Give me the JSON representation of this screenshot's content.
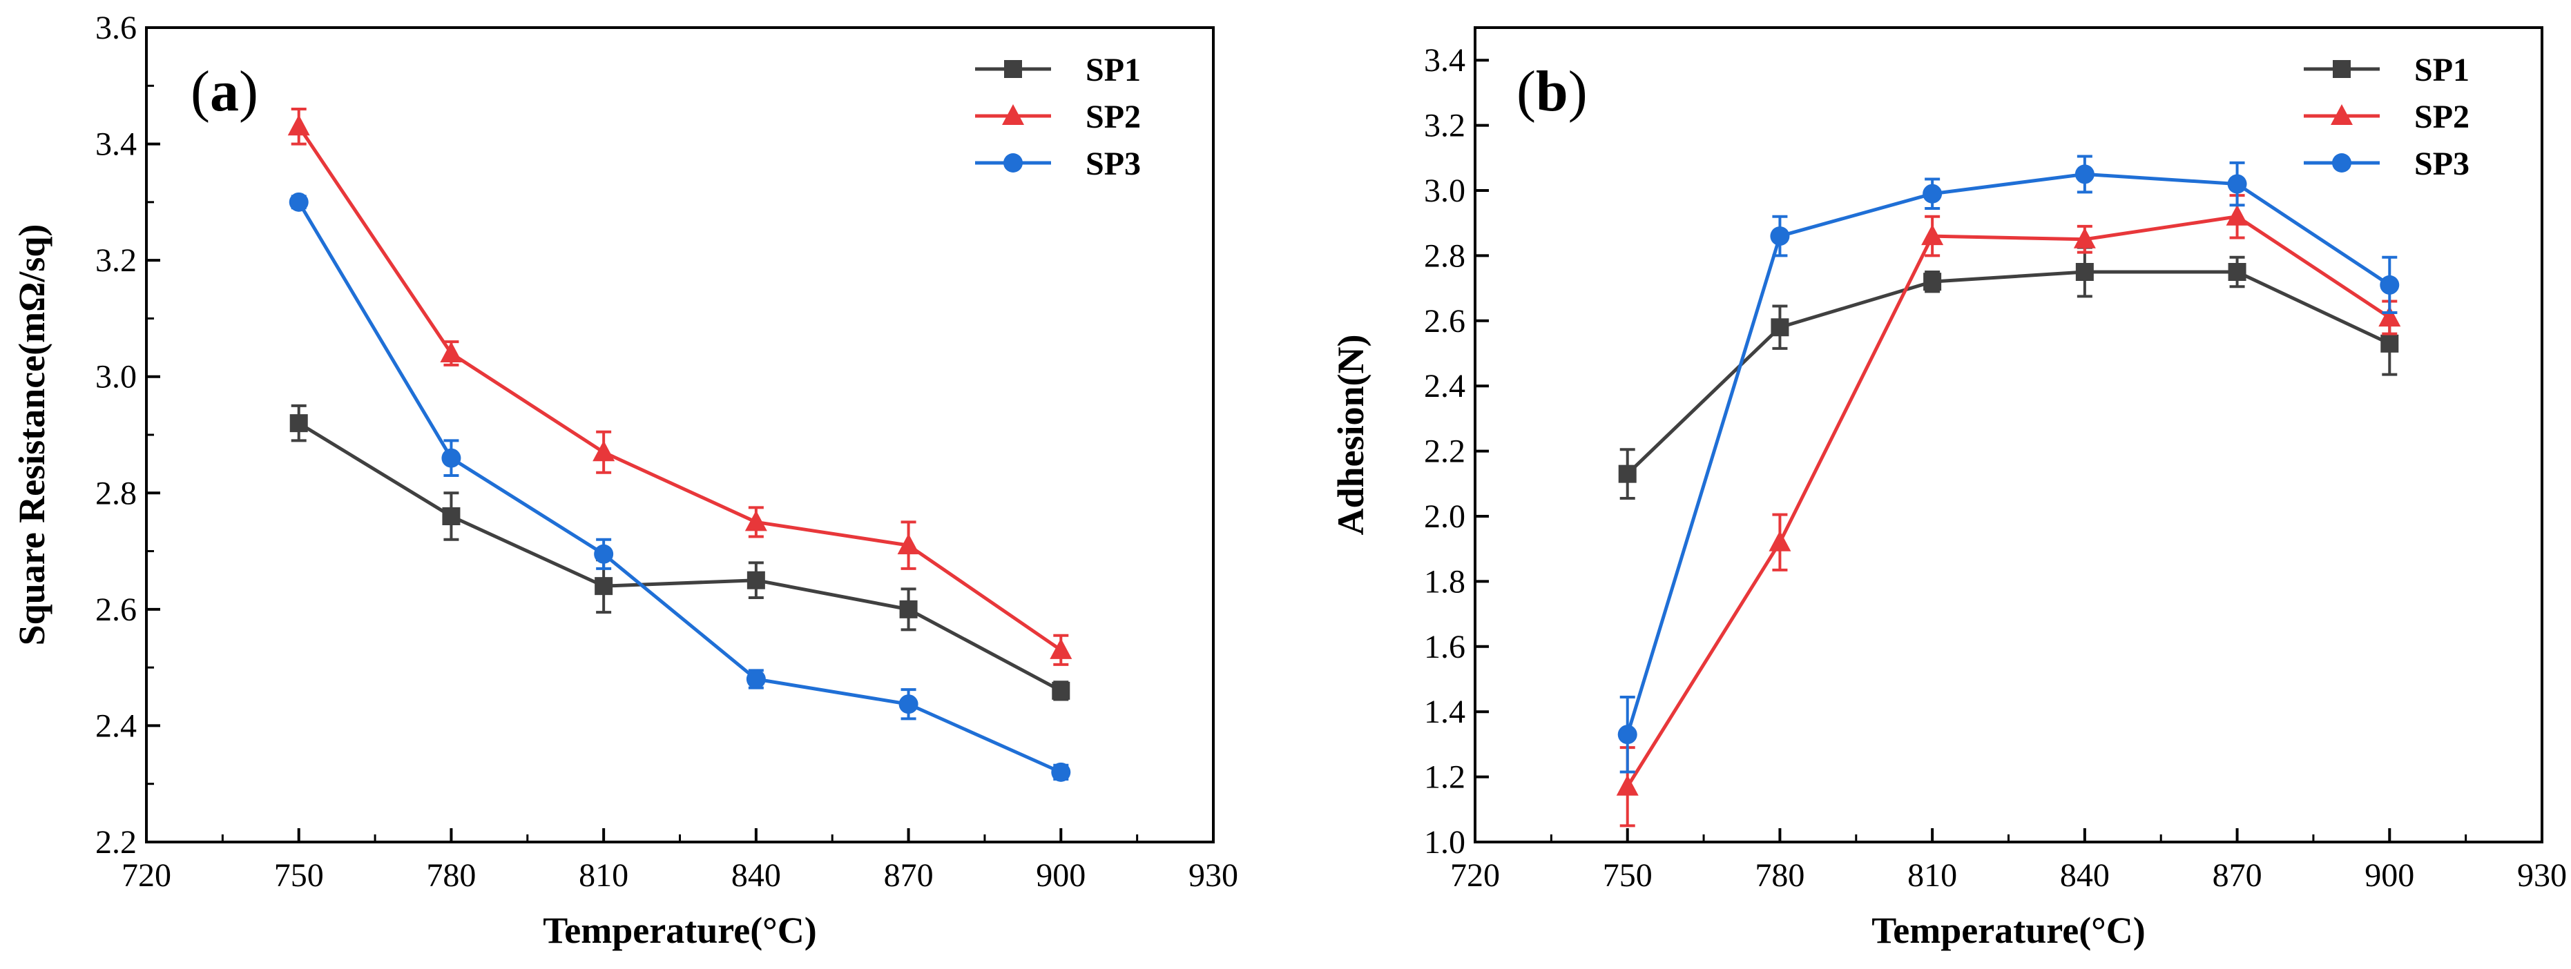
{
  "colors": {
    "SP1": "#404040",
    "SP2": "#e8373a",
    "SP3": "#1f6fd6",
    "axis": "#000000"
  },
  "chart_data": [
    {
      "id": "a",
      "type": "line",
      "panel_label": {
        "open": "(",
        "letter": "a",
        "close": ")"
      },
      "xlabel": "Temperature(°C)",
      "ylabel": "Square Resistance(mΩ/sq)",
      "xlim": [
        720,
        930
      ],
      "ylim": [
        2.2,
        3.6
      ],
      "xticks": [
        "720",
        "750",
        "780",
        "810",
        "840",
        "870",
        "900",
        "930"
      ],
      "yticks": [
        "2.2",
        "2.4",
        "2.6",
        "2.8",
        "3.0",
        "3.2",
        "3.4",
        "3.6"
      ],
      "legend_position": "top-right",
      "x": [
        750,
        780,
        810,
        840,
        870,
        900
      ],
      "series": [
        {
          "name": "SP1",
          "marker": "square",
          "values": [
            2.92,
            2.76,
            2.64,
            2.65,
            2.6,
            2.46
          ],
          "errors": [
            0.03,
            0.04,
            0.045,
            0.03,
            0.035,
            0.015
          ]
        },
        {
          "name": "SP2",
          "marker": "triangle",
          "values": [
            3.43,
            3.04,
            2.87,
            2.75,
            2.71,
            2.53
          ],
          "errors": [
            0.03,
            0.02,
            0.035,
            0.025,
            0.04,
            0.025
          ]
        },
        {
          "name": "SP3",
          "marker": "circle",
          "values": [
            3.3,
            2.86,
            2.695,
            2.48,
            2.437,
            2.32
          ],
          "errors": [
            0.01,
            0.03,
            0.025,
            0.015,
            0.025,
            0.012
          ]
        }
      ]
    },
    {
      "id": "b",
      "type": "line",
      "panel_label": {
        "open": "(",
        "letter": "b",
        "close": ")"
      },
      "xlabel": "Temperature(°C)",
      "ylabel": "Adhesion(N)",
      "xlim": [
        720,
        930
      ],
      "ylim": [
        1.0,
        3.5
      ],
      "xticks": [
        "720",
        "750",
        "780",
        "810",
        "840",
        "870",
        "900",
        "930"
      ],
      "yticks": [
        "1.0",
        "1.2",
        "1.4",
        "1.6",
        "1.8",
        "2.0",
        "2.2",
        "2.4",
        "2.6",
        "2.8",
        "3.0",
        "3.2",
        "3.4"
      ],
      "legend_position": "top-right",
      "x": [
        750,
        780,
        810,
        840,
        870,
        900
      ],
      "series": [
        {
          "name": "SP1",
          "marker": "square",
          "values": [
            2.13,
            2.58,
            2.72,
            2.75,
            2.75,
            2.53
          ],
          "errors": [
            0.075,
            0.065,
            0.03,
            0.075,
            0.045,
            0.095
          ]
        },
        {
          "name": "SP2",
          "marker": "triangle",
          "values": [
            1.17,
            1.92,
            2.86,
            2.85,
            2.92,
            2.61
          ],
          "errors": [
            0.12,
            0.085,
            0.06,
            0.04,
            0.065,
            0.05
          ]
        },
        {
          "name": "SP3",
          "marker": "circle",
          "values": [
            1.33,
            2.86,
            2.99,
            3.05,
            3.02,
            2.71
          ],
          "errors": [
            0.115,
            0.06,
            0.045,
            0.055,
            0.065,
            0.085
          ]
        }
      ]
    }
  ]
}
